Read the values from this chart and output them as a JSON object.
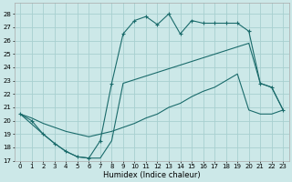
{
  "xlabel": "Humidex (Indice chaleur)",
  "bg_color": "#cce8e8",
  "grid_color": "#a8d0d0",
  "line_color": "#1a6b6b",
  "xlim": [
    -0.5,
    23.5
  ],
  "ylim": [
    17,
    28.8
  ],
  "x_ticks": [
    0,
    1,
    2,
    3,
    4,
    5,
    6,
    7,
    8,
    9,
    10,
    11,
    12,
    13,
    14,
    15,
    16,
    17,
    18,
    19,
    20,
    21,
    22,
    23
  ],
  "y_ticks": [
    17,
    18,
    19,
    20,
    21,
    22,
    23,
    24,
    25,
    26,
    27,
    28
  ],
  "line1_x": [
    0,
    1,
    2,
    3,
    4,
    5,
    6,
    7,
    8,
    9,
    10,
    11,
    12,
    13,
    14,
    15,
    16,
    17,
    18,
    19,
    20,
    21,
    22,
    23
  ],
  "line1_y": [
    20.5,
    20.0,
    19.0,
    18.3,
    17.7,
    17.3,
    17.2,
    18.5,
    22.8,
    26.5,
    27.5,
    27.8,
    27.2,
    28.0,
    26.5,
    27.5,
    27.3,
    27.3,
    27.3,
    27.3,
    26.7,
    22.8,
    22.5,
    20.8
  ],
  "line2_x": [
    0,
    1,
    2,
    3,
    4,
    5,
    6,
    7,
    8,
    9,
    10,
    11,
    12,
    13,
    14,
    15,
    16,
    17,
    18,
    19,
    20,
    21,
    22,
    23
  ],
  "line2_y": [
    20.5,
    20.2,
    19.8,
    19.5,
    19.2,
    19.0,
    18.8,
    19.0,
    19.2,
    19.5,
    19.8,
    20.2,
    20.5,
    21.0,
    21.3,
    21.8,
    22.2,
    22.5,
    23.0,
    23.5,
    20.8,
    20.5,
    20.5,
    20.8
  ],
  "line3_x": [
    0,
    2,
    3,
    4,
    5,
    6,
    7,
    8,
    9,
    20,
    21,
    22,
    23
  ],
  "line3_y": [
    20.5,
    19.0,
    18.3,
    17.7,
    17.3,
    17.2,
    17.2,
    18.5,
    22.8,
    25.8,
    22.8,
    22.5,
    20.8
  ]
}
